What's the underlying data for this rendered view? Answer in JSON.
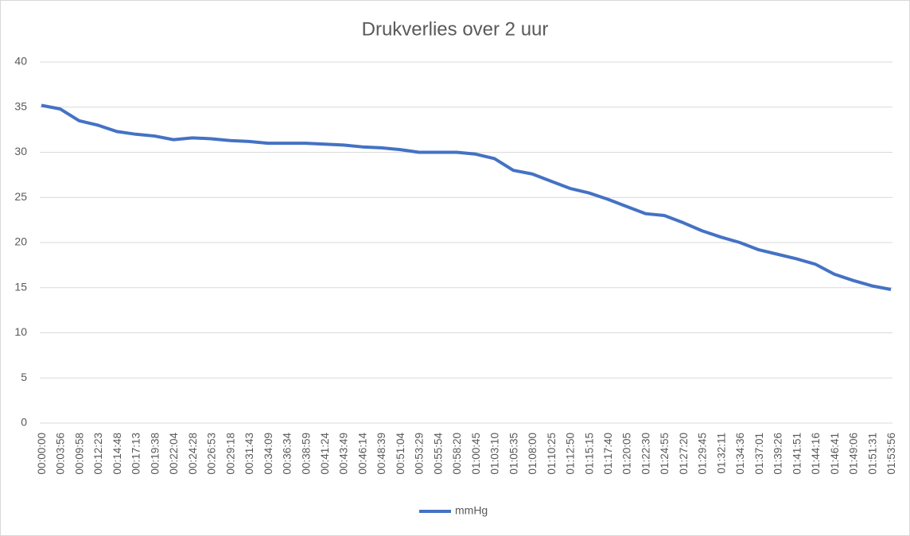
{
  "chart_data": {
    "type": "line",
    "title": "Drukverlies over 2 uur",
    "categories": [
      "00:00:00",
      "00:03:56",
      "00:09:58",
      "00:12:23",
      "00:14:48",
      "00:17:13",
      "00:19:38",
      "00:22:04",
      "00:24:28",
      "00:26:53",
      "00:29:18",
      "00:31:43",
      "00:34:09",
      "00:36:34",
      "00:38:59",
      "00:41:24",
      "00:43:49",
      "00:46:14",
      "00:48:39",
      "00:51:04",
      "00:53:29",
      "00:55:54",
      "00:58:20",
      "01:00:45",
      "01:03:10",
      "01:05:35",
      "01:08:00",
      "01:10:25",
      "01:12:50",
      "01:15:15",
      "01:17:40",
      "01:20:05",
      "01:22:30",
      "01:24:55",
      "01:27:20",
      "01:29:45",
      "01:32:11",
      "01:34:36",
      "01:37:01",
      "01:39:26",
      "01:41:51",
      "01:44:16",
      "01:46:41",
      "01:49:06",
      "01:51:31",
      "01:53:56"
    ],
    "series": [
      {
        "name": "mmHg",
        "color": "#4472c4",
        "values": [
          35.2,
          34.8,
          33.5,
          33,
          32.3,
          32,
          31.8,
          31.4,
          31.6,
          31.5,
          31.3,
          31.2,
          31,
          31,
          31,
          30.9,
          30.8,
          30.6,
          30.5,
          30.3,
          30,
          30,
          30,
          29.8,
          29.3,
          28,
          27.6,
          26.8,
          26,
          25.5,
          24.8,
          24,
          23.2,
          23,
          22.2,
          21.3,
          20.6,
          20,
          19.2,
          18.7,
          18.2,
          17.6,
          16.5,
          15.8,
          15.2,
          14.8
        ]
      }
    ],
    "ylim": [
      0,
      40
    ],
    "yticks": [
      0,
      5,
      10,
      15,
      20,
      25,
      30,
      35,
      40
    ],
    "grid": true,
    "legend": "bottom"
  }
}
